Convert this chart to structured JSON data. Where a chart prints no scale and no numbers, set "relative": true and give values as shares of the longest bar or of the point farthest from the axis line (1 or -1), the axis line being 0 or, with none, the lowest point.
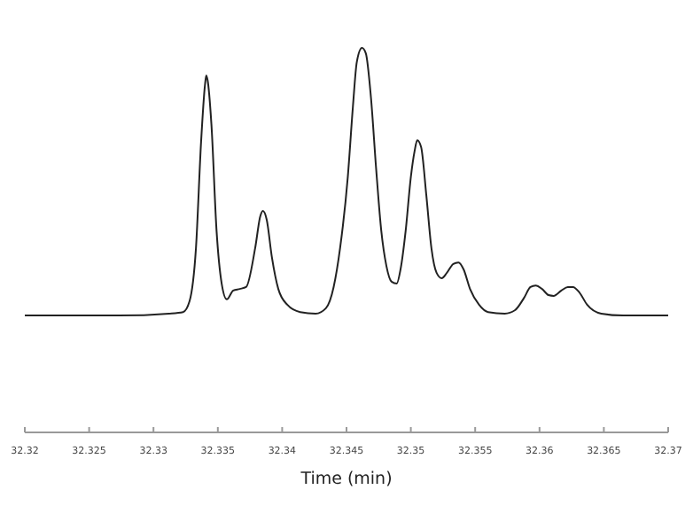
{
  "chart_data": {
    "type": "line",
    "relative": true,
    "xlabel": "Time (min)",
    "xlim": [
      32.32,
      32.37
    ],
    "xticks": [
      32.32,
      32.325,
      32.33,
      32.335,
      32.34,
      32.345,
      32.35,
      32.355,
      32.36,
      32.365,
      32.37
    ],
    "grid": false,
    "marker": "none",
    "line_style": "solid",
    "series": [
      {
        "color": "#222222",
        "x": [
          32.32,
          32.3273,
          32.3312,
          32.3323,
          32.3328,
          32.3333,
          32.3337,
          32.334,
          32.3341,
          32.3342,
          32.3345,
          32.3349,
          32.3353,
          32.3357,
          32.3362,
          32.3367,
          32.3372,
          32.3379,
          32.3383,
          32.3385,
          32.3388,
          32.3392,
          32.3397,
          32.3404,
          32.3414,
          32.3426,
          32.3434,
          32.344,
          32.3445,
          32.3451,
          32.3455,
          32.3458,
          32.3462,
          32.3465,
          32.3469,
          32.3473,
          32.3477,
          32.3481,
          32.3485,
          32.3489,
          32.3492,
          32.3496,
          32.35,
          32.3503,
          32.3505,
          32.3508,
          32.3512,
          32.3516,
          32.352,
          32.3524,
          32.3528,
          32.3533,
          32.3537,
          32.3541,
          32.3546,
          32.3553,
          32.356,
          32.3573,
          32.3581,
          32.3588,
          32.3593,
          32.3597,
          32.3602,
          32.3607,
          32.3611,
          32.3617,
          32.3622,
          32.3626,
          32.3631,
          32.3637,
          32.3648,
          32.3665,
          32.37
        ],
        "values": [
          0.304,
          0.304,
          0.309,
          0.313,
          0.341,
          0.479,
          0.756,
          0.903,
          0.928,
          0.917,
          0.802,
          0.525,
          0.387,
          0.346,
          0.369,
          0.373,
          0.378,
          0.479,
          0.562,
          0.576,
          0.553,
          0.456,
          0.373,
          0.332,
          0.313,
          0.309,
          0.323,
          0.378,
          0.479,
          0.664,
          0.848,
          0.963,
          1,
          0.986,
          0.871,
          0.687,
          0.525,
          0.433,
          0.392,
          0.387,
          0.424,
          0.525,
          0.664,
          0.733,
          0.76,
          0.742,
          0.618,
          0.479,
          0.415,
          0.401,
          0.415,
          0.438,
          0.442,
          0.424,
          0.373,
          0.332,
          0.313,
          0.309,
          0.318,
          0.35,
          0.378,
          0.382,
          0.373,
          0.357,
          0.355,
          0.369,
          0.378,
          0.378,
          0.364,
          0.332,
          0.309,
          0.304,
          0.304
        ]
      }
    ]
  }
}
